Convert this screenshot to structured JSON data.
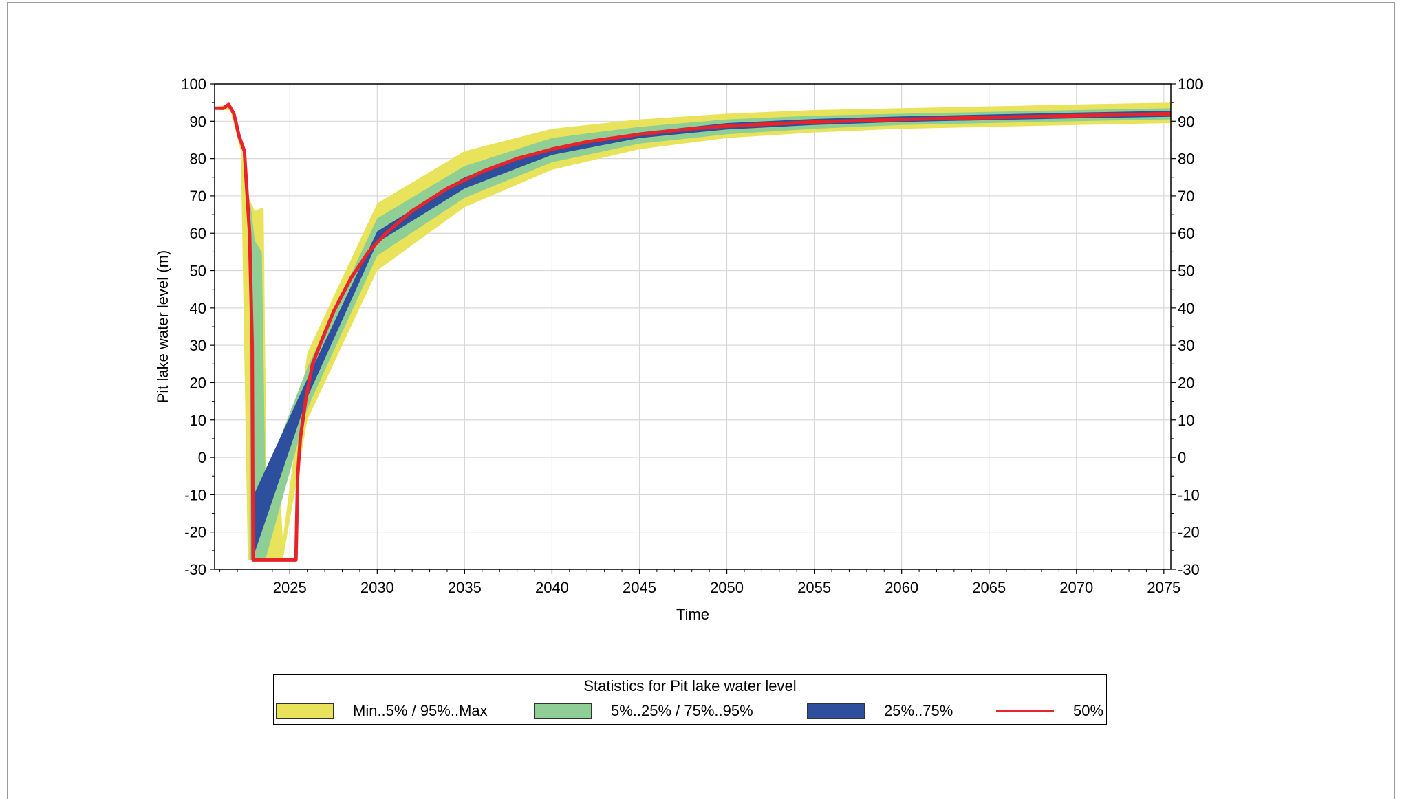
{
  "chart_data": {
    "type": "area",
    "xlabel": "Time",
    "ylabel": "Pit lake water level (m)",
    "xlim": [
      2020.7,
      2075.4
    ],
    "ylim": [
      -30,
      100
    ],
    "x_ticks": [
      2025,
      2030,
      2035,
      2040,
      2045,
      2050,
      2055,
      2060,
      2065,
      2070,
      2075
    ],
    "y_ticks": [
      -30,
      -20,
      -10,
      0,
      10,
      20,
      30,
      40,
      50,
      60,
      70,
      80,
      90,
      100
    ],
    "y_axis_right": true,
    "grid": true,
    "legend": {
      "title": "Statistics for Pit lake water level",
      "placement": "bottom",
      "entries": [
        {
          "label": "Min..5% / 95%..Max",
          "color": "#e8e35a",
          "kind": "band"
        },
        {
          "label": "5%..25% / 75%..95%",
          "color": "#8fce94",
          "kind": "band"
        },
        {
          "label": "25%..75%",
          "color": "#2e4f9e",
          "kind": "band"
        },
        {
          "label": "50%",
          "color": "#e8232a",
          "kind": "line"
        }
      ]
    },
    "series": [
      {
        "name": "50%",
        "x": [
          2020.7,
          2021.2,
          2021.5,
          2021.8,
          2022.1,
          2022.4,
          2022.7,
          2022.85,
          2022.9,
          2023.3,
          2024.0,
          2024.8,
          2025.35,
          2025.45,
          2025.6,
          2025.9,
          2026.3,
          2026.8,
          2027.5,
          2028.5,
          2029.5,
          2030.5,
          2032.0,
          2034.0,
          2036.0,
          2038.0,
          2040.0,
          2042.0,
          2045.0,
          2048.0,
          2050.0,
          2055.0,
          2060.0,
          2065.0,
          2070.0,
          2075.4
        ],
        "values": [
          93.5,
          93.5,
          94.5,
          92.0,
          86.0,
          82.0,
          60.0,
          30.0,
          -27.5,
          -27.5,
          -27.5,
          -27.5,
          -27.5,
          -5.0,
          5.0,
          15.0,
          25.0,
          31.0,
          39.0,
          48.0,
          55.0,
          60.0,
          66.0,
          72.0,
          76.5,
          80.0,
          82.5,
          84.5,
          86.5,
          88.0,
          88.7,
          89.8,
          90.5,
          91.0,
          91.5,
          92.0
        ]
      },
      {
        "name": "25%..75%",
        "x": [
          2022.85,
          2026.0,
          2030.0,
          2035.0,
          2040.0,
          2045.0,
          2050.0,
          2055.0,
          2060.0,
          2065.0,
          2070.0,
          2075.4
        ],
        "lower": [
          -27.5,
          16.0,
          57.5,
          72.0,
          81.0,
          85.5,
          87.8,
          89.0,
          89.8,
          90.3,
          90.8,
          91.2
        ],
        "upper": [
          -11.0,
          21.0,
          60.5,
          75.0,
          83.0,
          87.0,
          89.5,
          90.6,
          91.3,
          91.8,
          92.3,
          92.8
        ]
      },
      {
        "name": "5%..25% / 75%..95%",
        "x": [
          2022.7,
          2023.0,
          2023.4,
          2023.6,
          2026.0,
          2030.0,
          2035.0,
          2040.0,
          2045.0,
          2050.0,
          2055.0,
          2060.0,
          2065.0,
          2070.0,
          2075.4
        ],
        "lower": [
          -27.5,
          -27.5,
          -27.5,
          -27.5,
          13.0,
          54.0,
          69.5,
          79.0,
          84.0,
          86.5,
          88.0,
          89.0,
          89.5,
          90.0,
          90.5
        ],
        "upper": [
          70.0,
          58.0,
          55.0,
          -5.0,
          24.0,
          64.0,
          78.0,
          85.5,
          88.5,
          90.5,
          91.5,
          92.0,
          92.5,
          93.0,
          93.5
        ]
      },
      {
        "name": "Min..5% / 95%..Max",
        "x": [
          2021.0,
          2021.6,
          2022.2,
          2022.6,
          2023.0,
          2023.5,
          2023.7,
          2024.3,
          2024.6,
          2026.0,
          2030.0,
          2035.0,
          2040.0,
          2045.0,
          2050.0,
          2055.0,
          2060.0,
          2065.0,
          2070.0,
          2075.4
        ],
        "lower": [
          93.0,
          93.0,
          82.0,
          -27.5,
          -27.5,
          -27.5,
          -27.5,
          -27.5,
          -27.5,
          10.0,
          50.0,
          67.0,
          77.0,
          82.5,
          85.5,
          87.0,
          88.0,
          88.5,
          89.0,
          89.5
        ],
        "upper": [
          94.0,
          95.0,
          84.0,
          70.0,
          66.0,
          67.0,
          -20.0,
          3.0,
          -22.0,
          28.0,
          68.0,
          82.0,
          88.0,
          90.5,
          92.0,
          93.0,
          93.5,
          94.0,
          94.5,
          95.0
        ]
      }
    ]
  }
}
